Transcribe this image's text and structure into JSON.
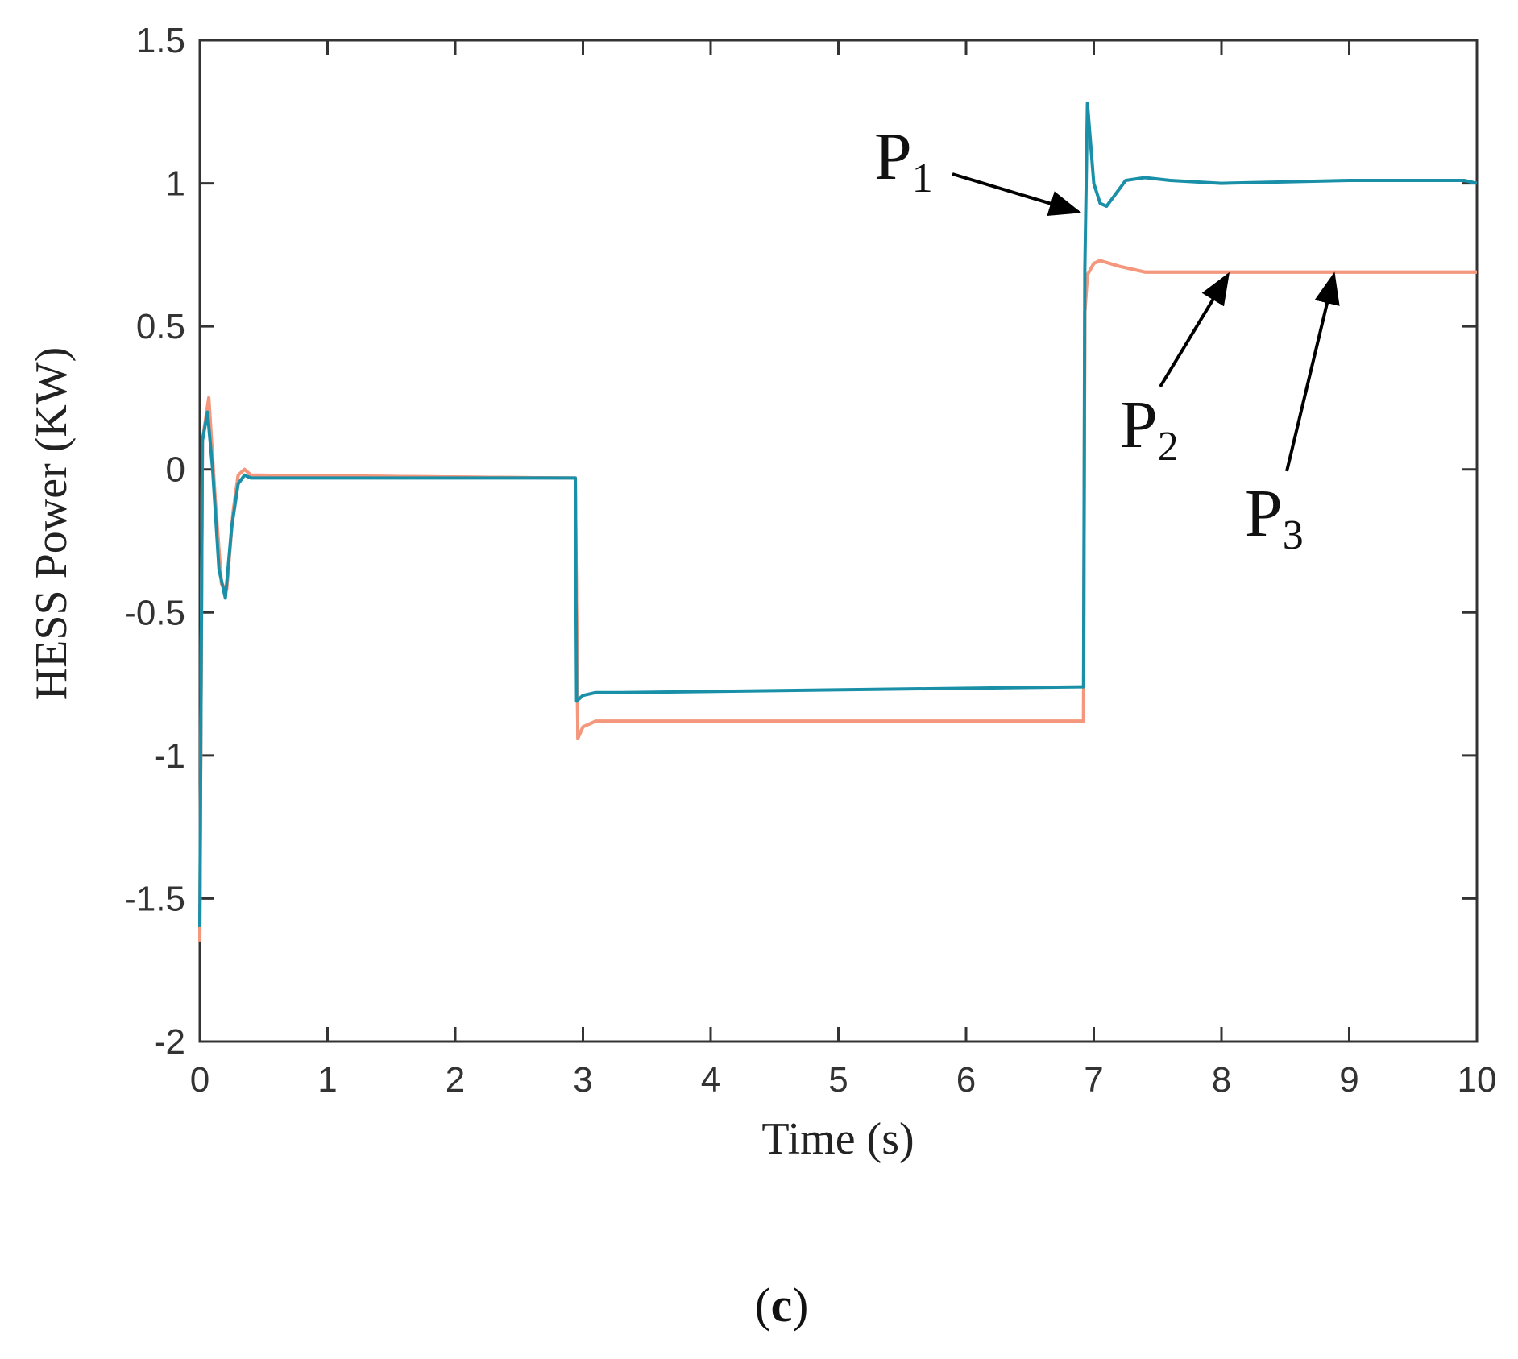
{
  "chart_data": {
    "type": "line",
    "xlabel": "Time (s)",
    "ylabel": "HESS Power (KW)",
    "xlim": [
      0,
      10
    ],
    "ylim": [
      -2,
      1.5
    ],
    "xticks": [
      "0",
      "1",
      "2",
      "3",
      "4",
      "5",
      "6",
      "7",
      "8",
      "9",
      "10"
    ],
    "yticks": [
      "1.5",
      "1",
      "0.5",
      "0",
      "-0.5",
      "-1",
      "-1.5",
      "-2"
    ],
    "grid": false,
    "colors": {
      "P1": "#1a8fa8",
      "P2": "#f4977c",
      "P3": "#f4977c"
    },
    "series": [
      {
        "name": "P1",
        "x": [
          0,
          0.02,
          0.06,
          0.1,
          0.15,
          0.2,
          0.25,
          0.3,
          0.35,
          0.4,
          2.9,
          2.94,
          2.95,
          3.0,
          3.1,
          3.3,
          6.9,
          6.92,
          6.93,
          6.95,
          7.0,
          7.05,
          7.1,
          7.15,
          7.25,
          7.4,
          7.6,
          8.0,
          9.0,
          9.9,
          10.0
        ],
        "values": [
          -1.6,
          0.1,
          0.2,
          0.0,
          -0.35,
          -0.45,
          -0.2,
          -0.05,
          -0.02,
          -0.03,
          -0.03,
          -0.03,
          -0.81,
          -0.79,
          -0.78,
          -0.78,
          -0.76,
          -0.76,
          0.7,
          1.28,
          1.0,
          0.93,
          0.92,
          0.95,
          1.01,
          1.02,
          1.01,
          1.0,
          1.01,
          1.01,
          1.0
        ]
      },
      {
        "name": "P2",
        "x": [
          0,
          0.02,
          0.07,
          0.12,
          0.17,
          0.21,
          0.26,
          0.3,
          0.35,
          0.4,
          2.9,
          2.94,
          2.96,
          3.0,
          3.1,
          3.3,
          6.9,
          6.92,
          6.93,
          6.95,
          7.0,
          7.05,
          7.2,
          7.4,
          8.0,
          10.0
        ],
        "values": [
          -1.65,
          0.1,
          0.25,
          -0.1,
          -0.4,
          -0.42,
          -0.15,
          -0.02,
          0.0,
          -0.02,
          -0.03,
          -0.03,
          -0.94,
          -0.9,
          -0.88,
          -0.88,
          -0.88,
          -0.88,
          0.55,
          0.68,
          0.72,
          0.73,
          0.71,
          0.69,
          0.69,
          0.69
        ]
      },
      {
        "name": "P3",
        "x": [
          0,
          0.02,
          0.07,
          0.12,
          0.17,
          0.21,
          0.26,
          0.3,
          0.35,
          0.4,
          2.9,
          2.94,
          2.96,
          3.0,
          3.1,
          3.3,
          6.9,
          6.92,
          6.93,
          6.95,
          7.0,
          7.05,
          7.2,
          7.4,
          8.0,
          10.0
        ],
        "values": [
          -1.65,
          0.1,
          0.25,
          -0.1,
          -0.4,
          -0.42,
          -0.15,
          -0.02,
          0.0,
          -0.02,
          -0.03,
          -0.03,
          -0.94,
          -0.9,
          -0.88,
          -0.88,
          -0.88,
          -0.88,
          0.55,
          0.68,
          0.72,
          0.73,
          0.71,
          0.69,
          0.69,
          0.69
        ]
      }
    ],
    "annotations": [
      {
        "series": "P1",
        "main": "P",
        "sub": "1",
        "target_x": 6.88,
        "target_y": 0.9
      },
      {
        "series": "P2",
        "main": "P",
        "sub": "2",
        "target_x": 8.05,
        "target_y": 0.68
      },
      {
        "series": "P3",
        "main": "P",
        "sub": "3",
        "target_x": 8.88,
        "target_y": 0.68
      }
    ]
  },
  "caption": {
    "open": "(",
    "letter": "c",
    "close": ")"
  }
}
